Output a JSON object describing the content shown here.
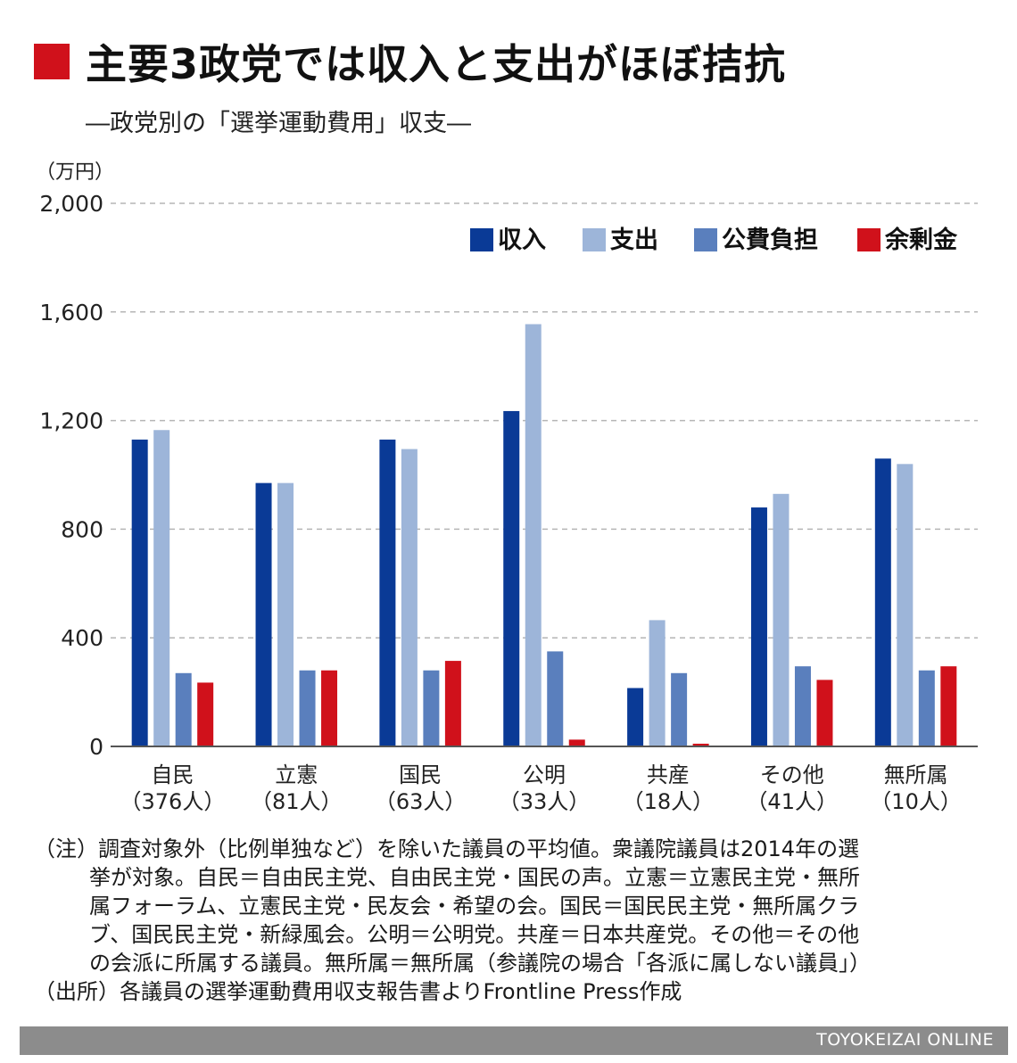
{
  "title": "主要3政党では収入と支出がほぼ拮抗",
  "subtitle": "―政党別の「選挙運動費用」収支―",
  "notes": [
    "（注）調査対象外（比例単独など）を除いた議員の平均値。衆議院議員は2014年の選",
    "挙が対象。自民＝自由民主党、自由民主党・国民の声。立憲＝立憲民主党・無所",
    "属フォーラム、立憲民主党・民友会・希望の会。国民＝国民民主党・無所属クラ",
    "ブ、国民民主党・新緑風会。公明＝公明党。共産＝日本共産党。その他＝その他",
    "の会派に所属する議員。無所属＝無所属（参議院の場合「各派に属しない議員」）",
    "（出所）各議員の選挙運動費用収支報告書よりFrontline Press作成"
  ],
  "footer": "TOYOKEIZAI ONLINE",
  "colors": {
    "accent": "#d0111b",
    "income": "#0a3a96",
    "expense": "#9db5d9",
    "public": "#5a7fbd",
    "surplus": "#d0111b",
    "footer_bg": "#8c8c8c"
  },
  "chart_data": {
    "type": "bar",
    "unit_label": "（万円）",
    "ylim": [
      0,
      2000
    ],
    "yticks": [
      0,
      400,
      800,
      1200,
      1600,
      2000
    ],
    "ytick_labels": [
      "0",
      "400",
      "800",
      "1,200",
      "1,600",
      "2,000"
    ],
    "grid": true,
    "legend_position": "top-right",
    "categories": [
      [
        "自民",
        "（376人）"
      ],
      [
        "立憲",
        "（81人）"
      ],
      [
        "国民",
        "（63人）"
      ],
      [
        "公明",
        "（33人）"
      ],
      [
        "共産",
        "（18人）"
      ],
      [
        "その他",
        "（41人）"
      ],
      [
        "無所属",
        "（10人）"
      ]
    ],
    "series": [
      {
        "name": "収入",
        "color": "#0a3a96",
        "values": [
          1130,
          970,
          1130,
          1235,
          215,
          880,
          1060
        ]
      },
      {
        "name": "支出",
        "color": "#9db5d9",
        "values": [
          1165,
          970,
          1095,
          1555,
          465,
          930,
          1040
        ]
      },
      {
        "name": "公費負担",
        "color": "#5a7fbd",
        "values": [
          270,
          280,
          280,
          350,
          270,
          295,
          280
        ]
      },
      {
        "name": "余剰金",
        "color": "#d0111b",
        "values": [
          235,
          280,
          315,
          25,
          10,
          245,
          295
        ]
      }
    ]
  }
}
